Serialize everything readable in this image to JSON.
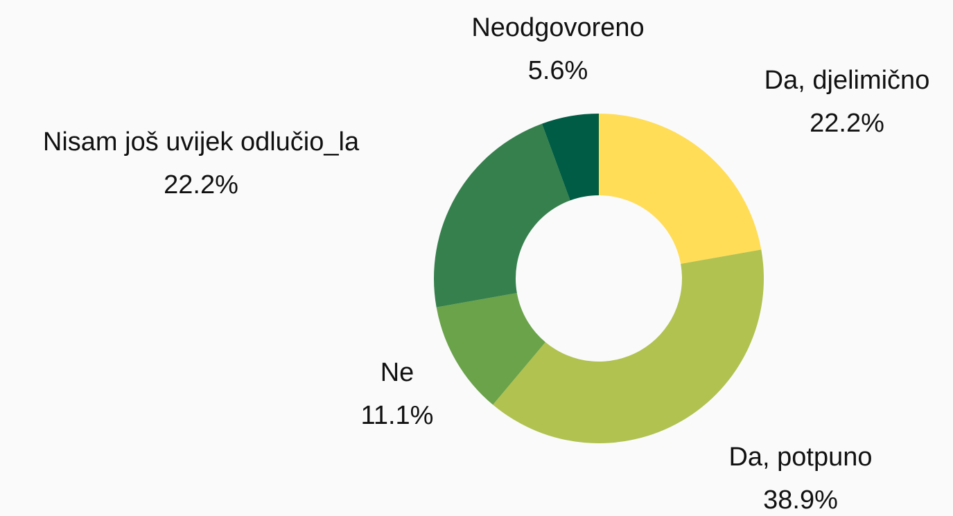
{
  "chart_data": {
    "type": "donut",
    "categories": [
      "Da, djelimično",
      "Da, potpuno",
      "Ne",
      "Nisam još uvijek odlučio_la",
      "Neodgovoreno"
    ],
    "values": [
      22.2,
      38.9,
      11.1,
      22.2,
      5.6
    ],
    "value_labels": [
      "22.2%",
      "38.9%",
      "11.1%",
      "22.2%",
      "5.6%"
    ],
    "colors": [
      "#ffdd57",
      "#b1c250",
      "#6aa34a",
      "#36804d",
      "#005c44"
    ]
  }
}
